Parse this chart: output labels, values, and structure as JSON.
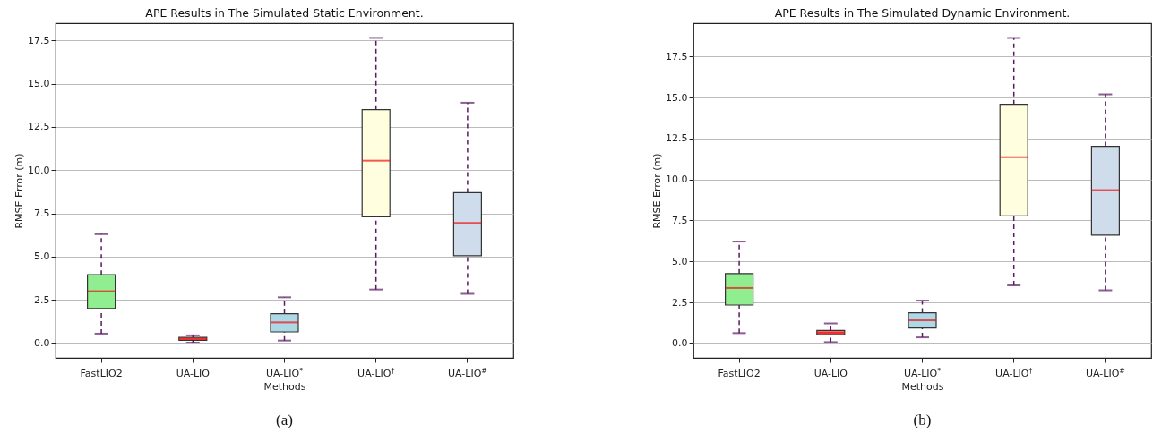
{
  "chart_data": [
    {
      "type": "box",
      "title": "APE Results in The Simulated Static Environment.",
      "xlabel": "Methods",
      "ylabel": "RMSE Error (m)",
      "categories": [
        "FastLIO2",
        "UA-LIO",
        "UA-LIO$^{*}$",
        "UA-LIO$^{†}$",
        "UA-LIO$^{#}$"
      ],
      "colors": [
        "#90ee90",
        "#ff6b6b",
        "#add8e6",
        "#ffffe0",
        "#cfdcec"
      ],
      "boxes": [
        {
          "low": 0.55,
          "q1": 2.0,
          "median": 3.0,
          "q3": 3.95,
          "high": 6.3
        },
        {
          "low": 0.03,
          "q1": 0.17,
          "median": 0.25,
          "q3": 0.33,
          "high": 0.45
        },
        {
          "low": 0.15,
          "q1": 0.65,
          "median": 1.2,
          "q3": 1.7,
          "high": 2.65
        },
        {
          "low": 3.1,
          "q1": 7.3,
          "median": 10.55,
          "q3": 13.5,
          "high": 17.65
        },
        {
          "low": 2.85,
          "q1": 5.05,
          "median": 6.95,
          "q3": 8.7,
          "high": 13.9
        }
      ],
      "ylim": [
        -0.85,
        18.5
      ],
      "yticks": [
        {
          "value": 0,
          "label": "0.0"
        },
        2.5,
        {
          "value": 5,
          "label": "5.0"
        },
        7.5,
        {
          "value": 10,
          "label": "10.0"
        },
        12.5,
        {
          "value": 15,
          "label": "15.0"
        },
        17.5
      ],
      "grid": "y",
      "annotations": [
        "(a)"
      ]
    },
    {
      "type": "box",
      "title": "APE Results in The Simulated Dynamic Environment.",
      "xlabel": "Methods",
      "ylabel": "RMSE Error (m)",
      "categories": [
        "FastLIO2",
        "UA-LIO",
        "UA-LIO$^{*}$",
        "UA-LIO$^{†}$",
        "UA-LIO$^{#}$"
      ],
      "colors": [
        "#90ee90",
        "#ff6b6b",
        "#add8e6",
        "#ffffe0",
        "#cfdcec"
      ],
      "boxes": [
        {
          "low": 0.63,
          "q1": 2.34,
          "median": 3.38,
          "q3": 4.26,
          "high": 6.21
        },
        {
          "low": 0.08,
          "q1": 0.53,
          "median": 0.65,
          "q3": 0.79,
          "high": 1.22
        },
        {
          "low": 0.37,
          "q1": 0.94,
          "median": 1.41,
          "q3": 1.87,
          "high": 2.61
        },
        {
          "low": 3.54,
          "q1": 7.78,
          "median": 11.36,
          "q3": 14.58,
          "high": 18.63
        },
        {
          "low": 3.24,
          "q1": 6.6,
          "median": 9.35,
          "q3": 12.02,
          "high": 15.19
        }
      ],
      "ylim": [
        -0.88,
        19.53
      ],
      "yticks": [
        {
          "value": 0,
          "label": "0.0"
        },
        2.5,
        {
          "value": 5,
          "label": "5.0"
        },
        7.5,
        {
          "value": 10,
          "label": "10.0"
        },
        12.5,
        {
          "value": 15,
          "label": "15.0"
        },
        17.5
      ],
      "grid": "y",
      "annotations": [
        "(b)"
      ]
    }
  ]
}
